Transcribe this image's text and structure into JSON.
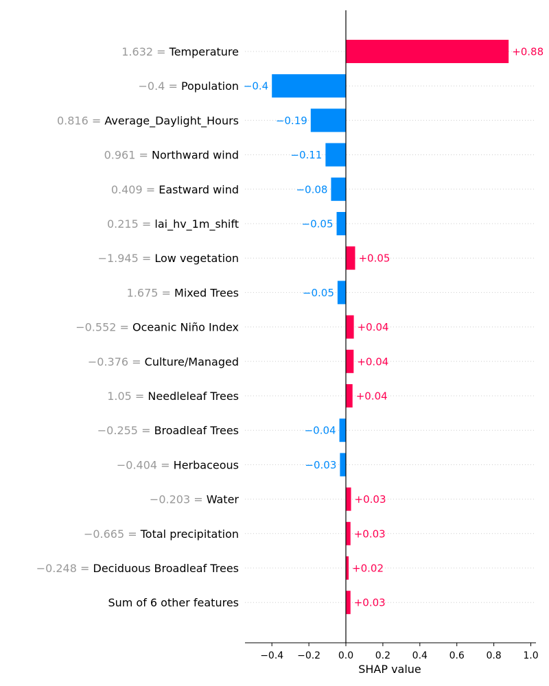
{
  "chart_data": {
    "type": "bar",
    "xlabel": "SHAP value",
    "xlim": [
      -0.545,
      1.02
    ],
    "xticks": [
      "−0.4",
      "−0.2",
      "0.0",
      "0.2",
      "0.4",
      "0.6",
      "0.8",
      "1.0"
    ],
    "xtick_values": [
      -0.4,
      -0.2,
      0.0,
      0.2,
      0.4,
      0.6,
      0.8,
      1.0
    ],
    "grid": "horizontal dotted",
    "colors": {
      "positive": "#ff0051",
      "negative": "#008bfb",
      "feature_value": "#999999"
    },
    "features": [
      {
        "value_text": "1.632",
        "name": "Temperature",
        "shap": 0.88,
        "shap_label": "+0.88"
      },
      {
        "value_text": "−0.4",
        "name": "Population",
        "shap": -0.4,
        "shap_label": "−0.4"
      },
      {
        "value_text": "0.816",
        "name": "Average_Daylight_Hours",
        "shap": -0.19,
        "shap_label": "−0.19"
      },
      {
        "value_text": "0.961",
        "name": "Northward wind",
        "shap": -0.11,
        "shap_label": "−0.11"
      },
      {
        "value_text": "0.409",
        "name": "Eastward wind",
        "shap": -0.08,
        "shap_label": "−0.08"
      },
      {
        "value_text": "0.215",
        "name": "lai_hv_1m_shift",
        "shap": -0.05,
        "shap_label": "−0.05"
      },
      {
        "value_text": "−1.945",
        "name": "Low vegetation",
        "shap": 0.05,
        "shap_label": "+0.05"
      },
      {
        "value_text": "1.675",
        "name": "Mixed Trees",
        "shap": -0.045,
        "shap_label": "−0.05"
      },
      {
        "value_text": "−0.552",
        "name": "Oceanic Niño Index",
        "shap": 0.043,
        "shap_label": "+0.04"
      },
      {
        "value_text": "−0.376",
        "name": "Culture/Managed",
        "shap": 0.042,
        "shap_label": "+0.04"
      },
      {
        "value_text": "1.05",
        "name": "Needleleaf Trees",
        "shap": 0.036,
        "shap_label": "+0.04"
      },
      {
        "value_text": "−0.255",
        "name": "Broadleaf Trees",
        "shap": -0.035,
        "shap_label": "−0.04"
      },
      {
        "value_text": "−0.404",
        "name": "Herbaceous",
        "shap": -0.032,
        "shap_label": "−0.03"
      },
      {
        "value_text": "−0.203",
        "name": "Water",
        "shap": 0.028,
        "shap_label": "+0.03"
      },
      {
        "value_text": "−0.665",
        "name": "Total precipitation",
        "shap": 0.025,
        "shap_label": "+0.03"
      },
      {
        "value_text": "−0.248",
        "name": "Deciduous Broadleaf Trees",
        "shap": 0.015,
        "shap_label": "+0.02"
      },
      {
        "value_text": "",
        "name": "Sum of 6 other features",
        "shap": 0.025,
        "shap_label": "+0.03"
      }
    ]
  }
}
